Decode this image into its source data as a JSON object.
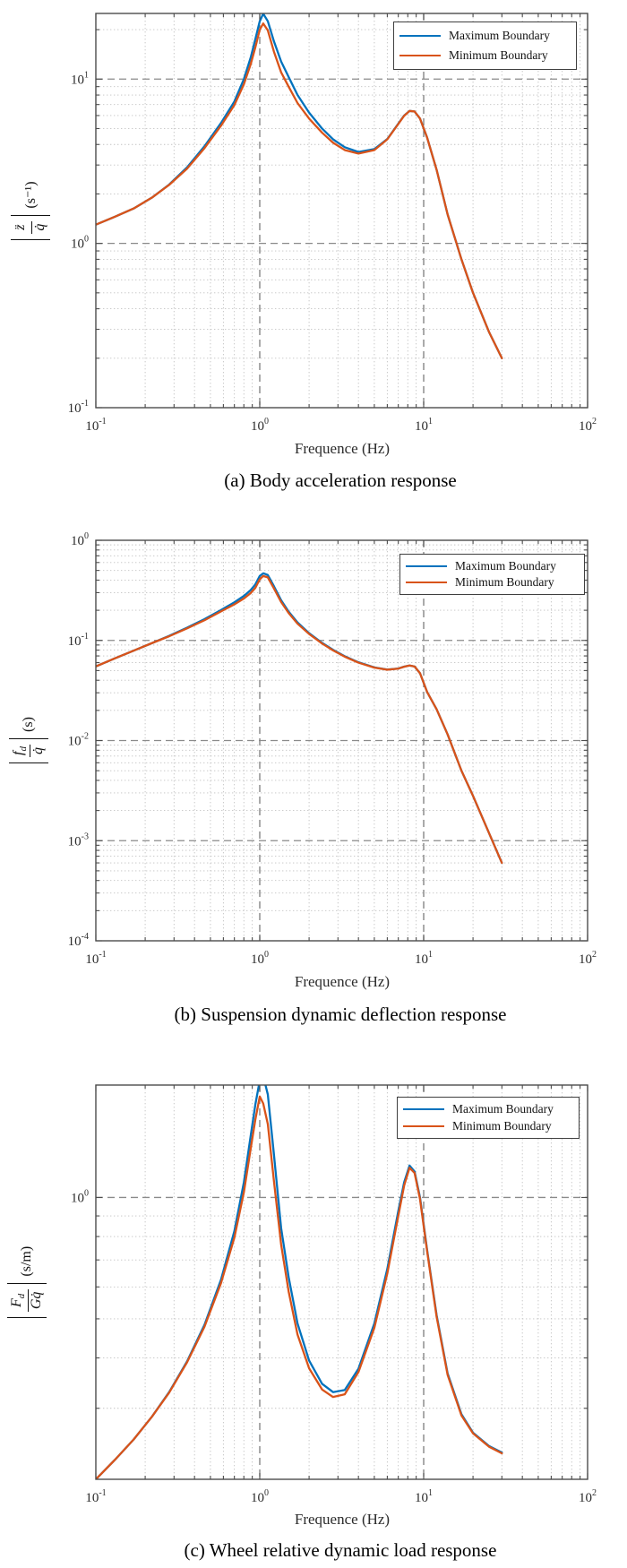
{
  "styles": {
    "max_color": "#0072BD",
    "min_color": "#D95319",
    "grid_major_color": "#8a8a8a",
    "grid_minor_color": "#c2c2c2",
    "axis_color": "#4c4c4c",
    "background": "#ffffff"
  },
  "chart_data": [
    {
      "type": "line",
      "caption": "(a) Body acceleration response",
      "xlabel": "Frequence (Hz)",
      "ylabel": {
        "num": "z̈",
        "num_sub": "",
        "den": "q̇",
        "unit": "(s⁻¹)"
      },
      "xscale": "log",
      "yscale": "log",
      "xlim": [
        0.1,
        100
      ],
      "ylim": [
        0.1,
        25.1
      ],
      "x_tick_exponents": [
        -1,
        0,
        1,
        2
      ],
      "y_tick_exponents": [
        1,
        0,
        -1
      ],
      "grid": "on",
      "legend": {
        "position": "top-right",
        "entries": [
          {
            "label": "Maximum Boundary",
            "color_key": "max_color"
          },
          {
            "label": "Minimum Boundary",
            "color_key": "min_color"
          }
        ]
      },
      "x": [
        0.1,
        0.13,
        0.17,
        0.22,
        0.28,
        0.36,
        0.46,
        0.58,
        0.7,
        0.8,
        0.88,
        0.94,
        1.0,
        1.05,
        1.12,
        1.22,
        1.35,
        1.5,
        1.7,
        2.0,
        2.4,
        2.8,
        3.3,
        4.0,
        5.0,
        6.0,
        7.0,
        7.6,
        8.2,
        8.8,
        9.5,
        10.5,
        12,
        14,
        17,
        20,
        25,
        30
      ],
      "series": [
        {
          "name": "Maximum Boundary",
          "y": [
            1.3,
            1.45,
            1.63,
            1.9,
            2.28,
            2.9,
            3.9,
            5.4,
            7.3,
            10.0,
            13.5,
            17.5,
            22.5,
            25.0,
            22.5,
            17.0,
            12.8,
            10.3,
            8.0,
            6.25,
            5.0,
            4.3,
            3.85,
            3.6,
            3.75,
            4.32,
            5.35,
            6.0,
            6.4,
            6.35,
            5.75,
            4.4,
            2.8,
            1.5,
            0.8,
            0.5,
            0.29,
            0.2
          ]
        },
        {
          "name": "Minimum Boundary",
          "y": [
            1.3,
            1.45,
            1.63,
            1.9,
            2.27,
            2.85,
            3.8,
            5.2,
            6.95,
            9.3,
            12.3,
            15.6,
            20.0,
            21.8,
            19.8,
            14.7,
            11.0,
            9.0,
            7.15,
            5.75,
            4.72,
            4.1,
            3.7,
            3.52,
            3.7,
            4.3,
            5.33,
            5.98,
            6.4,
            6.35,
            5.75,
            4.4,
            2.8,
            1.5,
            0.8,
            0.5,
            0.29,
            0.2
          ]
        }
      ]
    },
    {
      "type": "line",
      "caption": "(b) Suspension dynamic deflection response",
      "xlabel": "Frequence (Hz)",
      "ylabel": {
        "num": "f",
        "num_sub": "d",
        "den": "q̇",
        "unit": "(s)"
      },
      "xscale": "log",
      "yscale": "log",
      "xlim": [
        0.1,
        100
      ],
      "ylim": [
        0.0001,
        1
      ],
      "x_tick_exponents": [
        -1,
        0,
        1,
        2
      ],
      "y_tick_exponents": [
        0,
        -1,
        -2,
        -3,
        -4
      ],
      "grid": "on",
      "legend": {
        "position": "top-right",
        "entries": [
          {
            "label": "Maximum Boundary",
            "color_key": "max_color"
          },
          {
            "label": "Minimum Boundary",
            "color_key": "min_color"
          }
        ]
      },
      "x": [
        0.1,
        0.13,
        0.17,
        0.22,
        0.28,
        0.36,
        0.46,
        0.58,
        0.7,
        0.8,
        0.88,
        0.94,
        1.0,
        1.05,
        1.12,
        1.22,
        1.35,
        1.5,
        1.7,
        2.0,
        2.4,
        2.8,
        3.3,
        4.0,
        5.0,
        6.0,
        7.0,
        7.6,
        8.2,
        8.8,
        9.5,
        10.5,
        12,
        14,
        17,
        20,
        25,
        30
      ],
      "series": [
        {
          "name": "Maximum Boundary",
          "y": [
            0.055,
            0.066,
            0.079,
            0.094,
            0.111,
            0.134,
            0.163,
            0.201,
            0.24,
            0.278,
            0.318,
            0.363,
            0.44,
            0.468,
            0.45,
            0.348,
            0.252,
            0.194,
            0.151,
            0.118,
            0.0945,
            0.0805,
            0.0695,
            0.0605,
            0.0538,
            0.0512,
            0.0524,
            0.0547,
            0.0562,
            0.0549,
            0.047,
            0.0305,
            0.0205,
            0.0115,
            0.005,
            0.0028,
            0.0012,
            0.0006
          ]
        },
        {
          "name": "Minimum Boundary",
          "y": [
            0.055,
            0.066,
            0.079,
            0.094,
            0.11,
            0.132,
            0.159,
            0.195,
            0.229,
            0.262,
            0.297,
            0.335,
            0.408,
            0.44,
            0.426,
            0.331,
            0.242,
            0.188,
            0.147,
            0.116,
            0.0932,
            0.0795,
            0.0688,
            0.06,
            0.0535,
            0.051,
            0.0523,
            0.0546,
            0.0562,
            0.0549,
            0.047,
            0.0305,
            0.0205,
            0.0115,
            0.005,
            0.0028,
            0.0012,
            0.0006
          ]
        }
      ]
    },
    {
      "type": "line",
      "caption": "(c) Wheel relative dynamic load response",
      "xlabel": "Frequence (Hz)",
      "ylabel": {
        "num": "F",
        "num_sub": "d",
        "den": "Gq̇",
        "unit": "(s/m)"
      },
      "xscale": "log",
      "yscale": "log",
      "xlim": [
        0.1,
        100
      ],
      "ylim": [
        0.2,
        1.9
      ],
      "x_tick_exponents": [
        -1,
        0,
        1,
        2
      ],
      "y_tick_exponents": [
        0
      ],
      "grid": "on",
      "legend": {
        "position": "top-right",
        "entries": [
          {
            "label": "Maximum Boundary",
            "color_key": "max_color"
          },
          {
            "label": "Minimum Boundary",
            "color_key": "min_color"
          }
        ]
      },
      "x": [
        0.1,
        0.13,
        0.17,
        0.22,
        0.28,
        0.36,
        0.46,
        0.58,
        0.7,
        0.8,
        0.88,
        0.94,
        1.0,
        1.05,
        1.12,
        1.22,
        1.35,
        1.5,
        1.7,
        2.0,
        2.4,
        2.8,
        3.3,
        4.0,
        5.0,
        6.0,
        7.0,
        7.6,
        8.2,
        8.8,
        9.5,
        10.5,
        12,
        14,
        17,
        20,
        25,
        30
      ],
      "series": [
        {
          "name": "Maximum Boundary",
          "y": [
            0.2,
            0.223,
            0.251,
            0.286,
            0.329,
            0.392,
            0.483,
            0.625,
            0.825,
            1.09,
            1.42,
            1.7,
            1.95,
            2.0,
            1.8,
            1.28,
            0.84,
            0.635,
            0.487,
            0.394,
            0.345,
            0.329,
            0.333,
            0.376,
            0.487,
            0.665,
            0.925,
            1.09,
            1.2,
            1.16,
            1.0,
            0.74,
            0.51,
            0.366,
            0.29,
            0.261,
            0.242,
            0.233
          ]
        },
        {
          "name": "Minimum Boundary",
          "y": [
            0.2,
            0.223,
            0.251,
            0.286,
            0.328,
            0.39,
            0.478,
            0.613,
            0.795,
            1.03,
            1.32,
            1.56,
            1.78,
            1.71,
            1.52,
            1.1,
            0.765,
            0.585,
            0.457,
            0.377,
            0.334,
            0.32,
            0.325,
            0.369,
            0.475,
            0.648,
            0.9,
            1.07,
            1.185,
            1.15,
            0.99,
            0.735,
            0.505,
            0.363,
            0.288,
            0.26,
            0.241,
            0.232
          ]
        }
      ]
    }
  ]
}
